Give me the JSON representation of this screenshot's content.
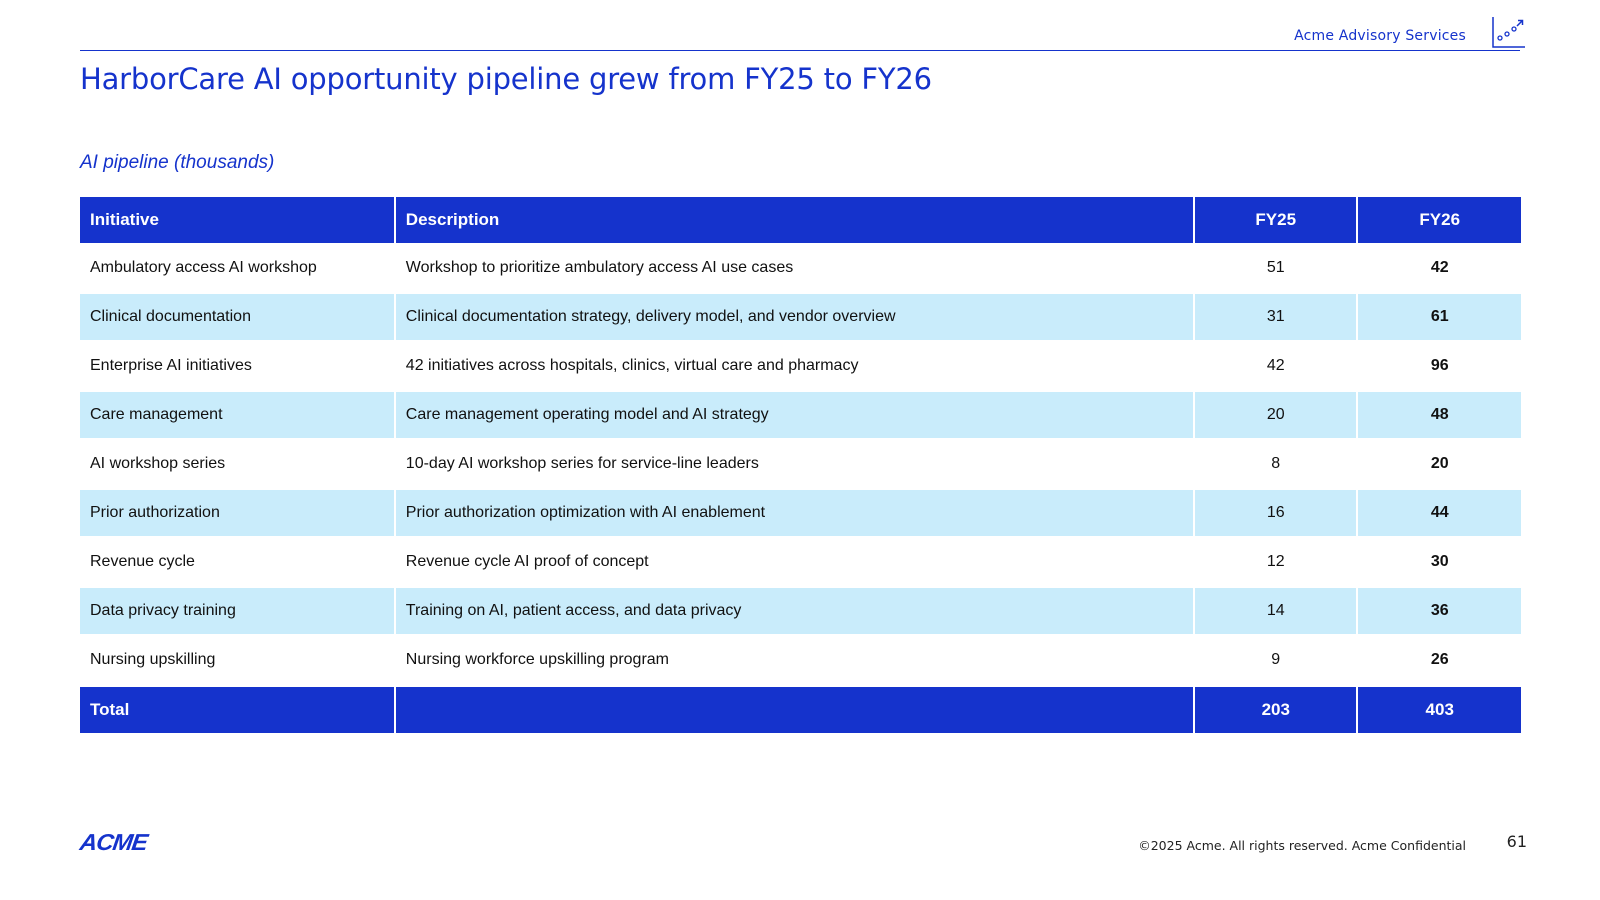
{
  "header": {
    "brand_text": "Acme Advisory Services",
    "brand_icon": "rising-dots-arrow-icon",
    "title": "HarborCare AI opportunity pipeline grew from FY25 to FY26"
  },
  "table": {
    "caption": "AI pipeline (thousands)",
    "columns": [
      "Initiative",
      "Description",
      "FY25",
      "FY26"
    ],
    "rows": [
      {
        "initiative": "Ambulatory access AI workshop",
        "description": "Workshop to prioritize ambulatory access AI use cases",
        "fy25": "51",
        "fy26": "42"
      },
      {
        "initiative": "Clinical documentation",
        "description": "Clinical documentation strategy, delivery model, and vendor overview",
        "fy25": "31",
        "fy26": "61"
      },
      {
        "initiative": "Enterprise AI initiatives",
        "description": "42 initiatives across hospitals, clinics, virtual care and pharmacy",
        "fy25": "42",
        "fy26": "96"
      },
      {
        "initiative": "Care management",
        "description": "Care management operating model and AI strategy",
        "fy25": "20",
        "fy26": "48"
      },
      {
        "initiative": "AI workshop series",
        "description": "10-day AI workshop series for service-line leaders",
        "fy25": "8",
        "fy26": "20"
      },
      {
        "initiative": "Prior authorization",
        "description": "Prior authorization optimization with AI enablement",
        "fy25": "16",
        "fy26": "44"
      },
      {
        "initiative": "Revenue cycle",
        "description": "Revenue cycle AI proof of concept",
        "fy25": "12",
        "fy26": "30"
      },
      {
        "initiative": "Data privacy training",
        "description": "Training on AI, patient access, and data privacy",
        "fy25": "14",
        "fy26": "36"
      },
      {
        "initiative": "Nursing upskilling",
        "description": "Nursing workforce upskilling program",
        "fy25": "9",
        "fy26": "26"
      }
    ],
    "total": {
      "label": "Total",
      "description": "",
      "fy25": "203",
      "fy26": "403"
    }
  },
  "colors": {
    "brand_blue": "#1533cc",
    "stripe_blue": "#c9ecfb"
  },
  "footer": {
    "logo_text": "ACME",
    "copyright": "©2025 Acme. All rights reserved. Acme Confidential",
    "page_number": "61"
  }
}
